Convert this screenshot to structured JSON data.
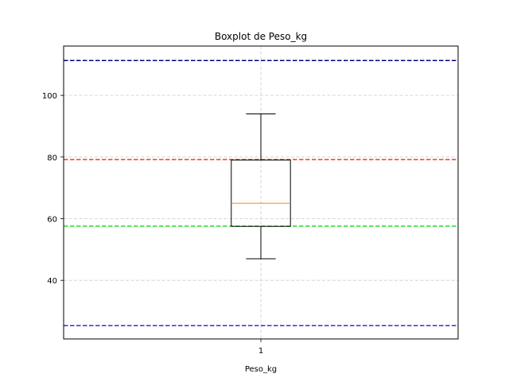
{
  "chart_data": {
    "type": "box",
    "title": "Boxplot de Peso_kg",
    "xlabel": "Peso_kg",
    "ylabel": "",
    "categories": [
      "1"
    ],
    "ylim": [
      21,
      116
    ],
    "yticks": [
      40,
      60,
      80,
      100
    ],
    "grid": true,
    "boxes": [
      {
        "category": "1",
        "whisker_low": 47,
        "q1": 57.5,
        "median": 65,
        "q3": 79,
        "whisker_high": 94
      }
    ],
    "reference_lines": [
      {
        "value": 111.3,
        "color": "#000080"
      },
      {
        "value": 79.2,
        "color": "#e8401c"
      },
      {
        "value": 57.6,
        "color": "#22dd22"
      },
      {
        "value": 25.3,
        "color": "#3a2ad8"
      }
    ],
    "colors": {
      "box": "#000000",
      "median": "#ff7f0e",
      "grid": "#cccccc"
    }
  }
}
